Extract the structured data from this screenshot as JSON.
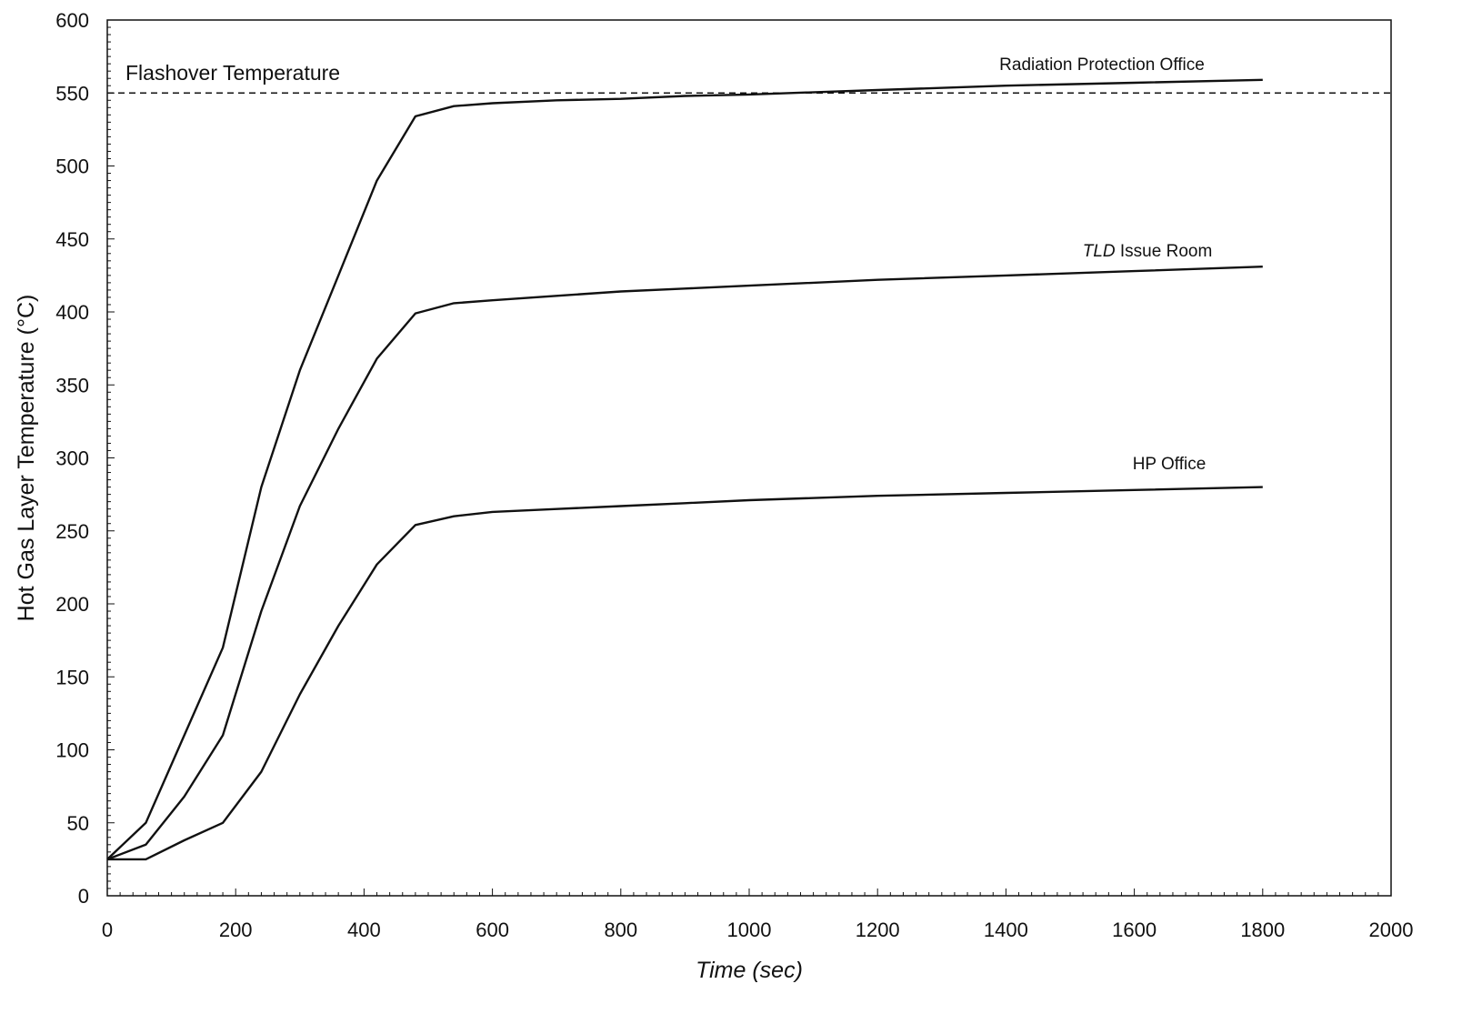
{
  "chart_data": {
    "type": "line",
    "title": "",
    "xlabel": "Time (sec)",
    "ylabel": "Hot Gas Layer Temperature (°C)",
    "xlim": [
      0,
      2000
    ],
    "ylim": [
      0,
      600
    ],
    "x_ticks": [
      0,
      200,
      400,
      600,
      800,
      1000,
      1200,
      1400,
      1600,
      1800,
      2000
    ],
    "y_ticks": [
      0,
      50,
      100,
      150,
      200,
      250,
      300,
      350,
      400,
      450,
      500,
      550,
      600
    ],
    "grid": false,
    "legend": "none",
    "reference_line": {
      "label": "Flashover Temperature",
      "y": 550,
      "style": "dashed"
    },
    "series": [
      {
        "name": "Radiation Protection Office",
        "label_style": "normal",
        "x": [
          0,
          60,
          120,
          180,
          240,
          300,
          360,
          420,
          480,
          540,
          600,
          700,
          800,
          900,
          1000,
          1200,
          1400,
          1600,
          1800
        ],
        "y": [
          25,
          50,
          110,
          170,
          280,
          360,
          425,
          490,
          534,
          541,
          543,
          545,
          546,
          548,
          549,
          552,
          555,
          557,
          559
        ]
      },
      {
        "name": "TLD Issue Room",
        "label_style": "italic-prefix",
        "label_prefix": "TLD",
        "label_suffix": " Issue Room",
        "x": [
          0,
          60,
          120,
          180,
          240,
          300,
          360,
          420,
          480,
          540,
          600,
          700,
          800,
          900,
          1000,
          1200,
          1400,
          1600,
          1800
        ],
        "y": [
          25,
          35,
          68,
          110,
          195,
          267,
          320,
          368,
          399,
          406,
          408,
          411,
          414,
          416,
          418,
          422,
          425,
          428,
          431
        ]
      },
      {
        "name": "HP Office",
        "label_style": "normal",
        "x": [
          0,
          60,
          120,
          180,
          240,
          300,
          360,
          420,
          480,
          540,
          600,
          700,
          800,
          900,
          1000,
          1200,
          1400,
          1600,
          1800
        ],
        "y": [
          25,
          25,
          38,
          50,
          85,
          138,
          185,
          227,
          254,
          260,
          263,
          265,
          267,
          269,
          271,
          274,
          276,
          278,
          280
        ]
      }
    ],
    "colors": {
      "line": "#111111",
      "axis": "#111111",
      "background": "#ffffff"
    }
  }
}
